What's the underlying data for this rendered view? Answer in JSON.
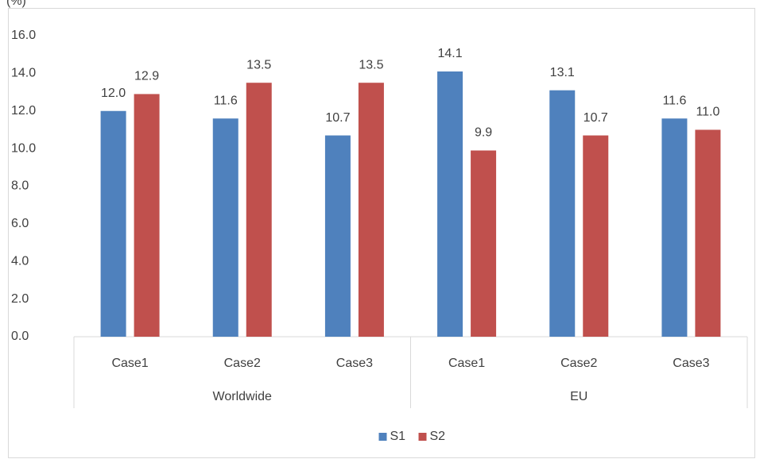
{
  "chart_data": {
    "type": "bar",
    "y_label": "(%)",
    "groups": [
      {
        "name": "Worldwide",
        "categories": [
          "Case1",
          "Case2",
          "Case3"
        ]
      },
      {
        "name": "EU",
        "categories": [
          "Case1",
          "Case2",
          "Case3"
        ]
      }
    ],
    "series": [
      {
        "name": "S1",
        "color": "#4f81bd",
        "values": [
          12.0,
          11.6,
          10.7,
          14.1,
          13.1,
          11.6
        ],
        "value_labels": [
          "12.0",
          "11.6",
          "10.7",
          "14.1",
          "13.1",
          "11.6"
        ]
      },
      {
        "name": "S2",
        "color": "#c0504d",
        "values": [
          12.9,
          13.5,
          13.5,
          9.9,
          10.7,
          11.0
        ],
        "value_labels": [
          "12.9",
          "13.5",
          "13.5",
          "9.9",
          "10.7",
          "11.0"
        ]
      }
    ],
    "ylim": [
      0,
      16
    ],
    "yticks": [
      {
        "value": 0,
        "label": "0.0"
      },
      {
        "value": 2,
        "label": "2.0"
      },
      {
        "value": 4,
        "label": "4.0"
      },
      {
        "value": 6,
        "label": "6.0"
      },
      {
        "value": 8,
        "label": "8.0"
      },
      {
        "value": 10,
        "label": "10.0"
      },
      {
        "value": 12,
        "label": "12.0"
      },
      {
        "value": 14,
        "label": "14.0"
      },
      {
        "value": 16,
        "label": "16.0"
      }
    ],
    "grid": false,
    "legend": "bottom"
  }
}
